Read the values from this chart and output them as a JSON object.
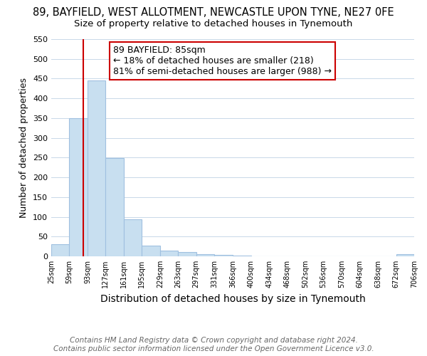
{
  "title": "89, BAYFIELD, WEST ALLOTMENT, NEWCASTLE UPON TYNE, NE27 0FE",
  "subtitle": "Size of property relative to detached houses in Tynemouth",
  "xlabel": "Distribution of detached houses by size in Tynemouth",
  "ylabel": "Number of detached properties",
  "bar_color": "#c8dff0",
  "bar_edge_color": "#a0c0e0",
  "grid_color": "#c8d8e8",
  "bin_edges": [
    25,
    59,
    93,
    127,
    161,
    195,
    229,
    263,
    297,
    331,
    366,
    400,
    434,
    468,
    502,
    536,
    570,
    604,
    638,
    672,
    706
  ],
  "bar_heights": [
    30,
    350,
    445,
    248,
    93,
    27,
    15,
    10,
    5,
    3,
    2,
    0,
    0,
    0,
    0,
    0,
    0,
    0,
    0,
    5
  ],
  "tick_labels": [
    "25sqm",
    "59sqm",
    "93sqm",
    "127sqm",
    "161sqm",
    "195sqm",
    "229sqm",
    "263sqm",
    "297sqm",
    "331sqm",
    "366sqm",
    "400sqm",
    "434sqm",
    "468sqm",
    "502sqm",
    "536sqm",
    "570sqm",
    "604sqm",
    "638sqm",
    "672sqm",
    "706sqm"
  ],
  "ylim": [
    0,
    550
  ],
  "yticks": [
    0,
    50,
    100,
    150,
    200,
    250,
    300,
    350,
    400,
    450,
    500,
    550
  ],
  "property_line_x": 85,
  "property_line_color": "#cc0000",
  "annotation_line1": "89 BAYFIELD: 85sqm",
  "annotation_line2": "← 18% of detached houses are smaller (218)",
  "annotation_line3": "81% of semi-detached houses are larger (988) →",
  "annotation_box_color": "#ffffff",
  "annotation_box_edge_color": "#cc0000",
  "footer_line1": "Contains HM Land Registry data © Crown copyright and database right 2024.",
  "footer_line2": "Contains public sector information licensed under the Open Government Licence v3.0.",
  "title_fontsize": 10.5,
  "subtitle_fontsize": 9.5,
  "xlabel_fontsize": 10,
  "ylabel_fontsize": 9,
  "annotation_fontsize": 9,
  "footer_fontsize": 7.5
}
